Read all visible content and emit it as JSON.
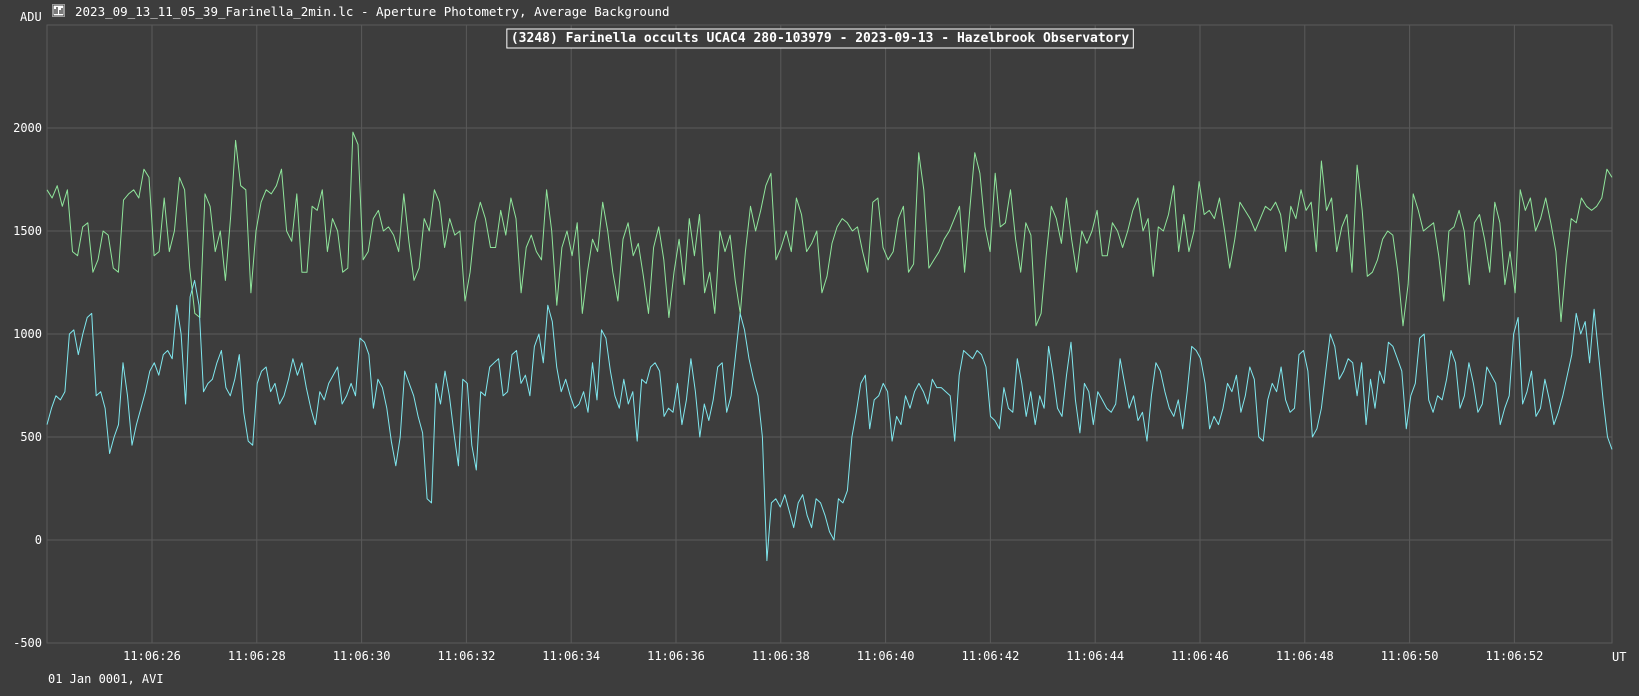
{
  "header": {
    "y_unit": "ADU",
    "file_title": "2023_09_13_11_05_39_Farinella_2min.lc - Aperture Photometry, Average Background",
    "icon": "lightcurve-app-icon"
  },
  "footer": {
    "date_label": "01 Jan 0001, AVI",
    "x_unit": "UT"
  },
  "colors": {
    "background": "#3d3d3d",
    "grid": "#5a5a5a",
    "series_green": "#8fe59b",
    "series_cyan": "#7fe7ee"
  },
  "chart_data": {
    "type": "line",
    "title": "(3248) Farinella occults UCAC4 280-103979 - 2023-09-13 - Hazelbrook Observatory",
    "ylabel": "ADU",
    "xlabel": "UT",
    "ylim": [
      -500,
      2500
    ],
    "y_ticks": [
      -500,
      0,
      500,
      1000,
      1500,
      2000
    ],
    "x_ticks": [
      "11:06:26",
      "11:06:28",
      "11:06:30",
      "11:06:32",
      "11:06:34",
      "11:06:36",
      "11:06:38",
      "11:06:40",
      "11:06:42",
      "11:06:44",
      "11:06:46",
      "11:06:48",
      "11:06:50",
      "11:06:52"
    ],
    "grid": true,
    "series": [
      {
        "color": "#8fe59b",
        "values": [
          1700,
          1660,
          1720,
          1620,
          1700,
          1400,
          1380,
          1520,
          1540,
          1300,
          1360,
          1500,
          1480,
          1320,
          1300,
          1650,
          1680,
          1700,
          1660,
          1800,
          1760,
          1380,
          1400,
          1660,
          1400,
          1500,
          1760,
          1700,
          1320,
          1100,
          1080,
          1680,
          1620,
          1400,
          1500,
          1260,
          1560,
          1940,
          1720,
          1700,
          1200,
          1500,
          1640,
          1700,
          1680,
          1720,
          1800,
          1500,
          1450,
          1680,
          1300,
          1300,
          1620,
          1600,
          1700,
          1400,
          1560,
          1500,
          1300,
          1320,
          1980,
          1920,
          1360,
          1400,
          1560,
          1600,
          1500,
          1520,
          1480,
          1400,
          1680,
          1450,
          1260,
          1320,
          1560,
          1500,
          1700,
          1640,
          1420,
          1560,
          1480,
          1500,
          1160,
          1300,
          1540,
          1640,
          1560,
          1420,
          1420,
          1600,
          1480,
          1660,
          1560,
          1200,
          1420,
          1480,
          1400,
          1360,
          1700,
          1500,
          1140,
          1420,
          1500,
          1380,
          1540,
          1100,
          1300,
          1460,
          1400,
          1640,
          1500,
          1300,
          1160,
          1460,
          1540,
          1380,
          1440,
          1280,
          1100,
          1420,
          1520,
          1360,
          1080,
          1300,
          1460,
          1240,
          1560,
          1380,
          1580,
          1200,
          1300,
          1100,
          1500,
          1400,
          1480,
          1260,
          1100,
          1400,
          1620,
          1500,
          1600,
          1720,
          1780,
          1360,
          1420,
          1500,
          1400,
          1660,
          1580,
          1400,
          1440,
          1500,
          1200,
          1280,
          1440,
          1520,
          1560,
          1540,
          1500,
          1520,
          1400,
          1300,
          1640,
          1660,
          1420,
          1360,
          1400,
          1560,
          1620,
          1300,
          1340,
          1880,
          1700,
          1320,
          1360,
          1400,
          1460,
          1500,
          1560,
          1620,
          1300,
          1600,
          1880,
          1780,
          1520,
          1400,
          1780,
          1520,
          1540,
          1700,
          1460,
          1300,
          1540,
          1480,
          1040,
          1100,
          1380,
          1620,
          1560,
          1440,
          1660,
          1460,
          1300,
          1500,
          1440,
          1500,
          1600,
          1380,
          1380,
          1540,
          1500,
          1420,
          1500,
          1600,
          1660,
          1500,
          1560,
          1280,
          1520,
          1500,
          1580,
          1720,
          1400,
          1580,
          1400,
          1500,
          1740,
          1580,
          1600,
          1560,
          1660,
          1500,
          1320,
          1460,
          1640,
          1600,
          1560,
          1500,
          1560,
          1620,
          1600,
          1640,
          1580,
          1400,
          1620,
          1560,
          1700,
          1600,
          1640,
          1400,
          1840,
          1600,
          1660,
          1400,
          1520,
          1580,
          1300,
          1820,
          1600,
          1280,
          1300,
          1360,
          1460,
          1500,
          1480,
          1300,
          1040,
          1240,
          1680,
          1600,
          1500,
          1520,
          1540,
          1380,
          1160,
          1500,
          1520,
          1600,
          1500,
          1240,
          1540,
          1580,
          1460,
          1300,
          1640,
          1540,
          1240,
          1400,
          1200,
          1700,
          1600,
          1660,
          1500,
          1560,
          1660,
          1540,
          1400,
          1060,
          1340,
          1560,
          1540,
          1660,
          1620,
          1600,
          1620,
          1660,
          1800,
          1760
        ]
      },
      {
        "color": "#7fe7ee",
        "values": [
          560,
          640,
          700,
          680,
          720,
          1000,
          1020,
          900,
          1000,
          1080,
          1100,
          700,
          720,
          640,
          420,
          500,
          560,
          860,
          700,
          460,
          560,
          640,
          720,
          820,
          860,
          800,
          900,
          920,
          880,
          1140,
          1000,
          660,
          1180,
          1260,
          1140,
          720,
          760,
          780,
          860,
          920,
          740,
          700,
          780,
          900,
          620,
          480,
          460,
          760,
          820,
          840,
          720,
          760,
          660,
          700,
          780,
          880,
          800,
          860,
          740,
          640,
          560,
          720,
          680,
          760,
          800,
          840,
          660,
          700,
          760,
          700,
          980,
          960,
          900,
          640,
          780,
          740,
          640,
          480,
          360,
          500,
          820,
          760,
          700,
          600,
          520,
          200,
          180,
          760,
          660,
          820,
          700,
          520,
          360,
          780,
          760,
          460,
          340,
          720,
          700,
          840,
          860,
          880,
          700,
          720,
          900,
          920,
          760,
          800,
          700,
          940,
          1000,
          860,
          1140,
          1060,
          840,
          720,
          780,
          700,
          640,
          660,
          720,
          620,
          860,
          680,
          1020,
          980,
          820,
          700,
          640,
          780,
          660,
          720,
          480,
          780,
          760,
          840,
          860,
          820,
          600,
          640,
          620,
          760,
          560,
          680,
          880,
          720,
          500,
          660,
          580,
          680,
          840,
          860,
          620,
          700,
          900,
          1100,
          1020,
          880,
          780,
          700,
          500,
          -100,
          180,
          200,
          160,
          220,
          140,
          60,
          180,
          220,
          120,
          60,
          200,
          180,
          120,
          40,
          0,
          200,
          180,
          240,
          500,
          620,
          760,
          800,
          540,
          680,
          700,
          760,
          720,
          480,
          600,
          560,
          700,
          640,
          720,
          760,
          720,
          660,
          780,
          740,
          740,
          720,
          700,
          480,
          800,
          920,
          900,
          880,
          920,
          900,
          840,
          600,
          580,
          540,
          740,
          640,
          620,
          880,
          760,
          600,
          720,
          560,
          700,
          640,
          940,
          800,
          640,
          600,
          800,
          960,
          680,
          520,
          760,
          720,
          560,
          720,
          680,
          640,
          620,
          660,
          880,
          760,
          640,
          700,
          580,
          620,
          480,
          700,
          860,
          820,
          720,
          640,
          600,
          680,
          540,
          720,
          940,
          920,
          880,
          760,
          540,
          600,
          560,
          640,
          760,
          720,
          800,
          620,
          700,
          840,
          780,
          500,
          480,
          680,
          760,
          720,
          840,
          680,
          620,
          640,
          900,
          920,
          820,
          500,
          540,
          640,
          820,
          1000,
          940,
          780,
          820,
          880,
          860,
          700,
          860,
          560,
          780,
          640,
          820,
          760,
          960,
          940,
          880,
          820,
          540,
          700,
          760,
          980,
          1000,
          680,
          620,
          700,
          680,
          780,
          920,
          860,
          640,
          700,
          860,
          760,
          620,
          660,
          840,
          800,
          760,
          560,
          640,
          700,
          1000,
          1080,
          660,
          720,
          820,
          600,
          640,
          780,
          680,
          560,
          620,
          700,
          800,
          900,
          1100,
          1000,
          1060,
          860,
          1120,
          900,
          680,
          500,
          440
        ]
      }
    ]
  }
}
